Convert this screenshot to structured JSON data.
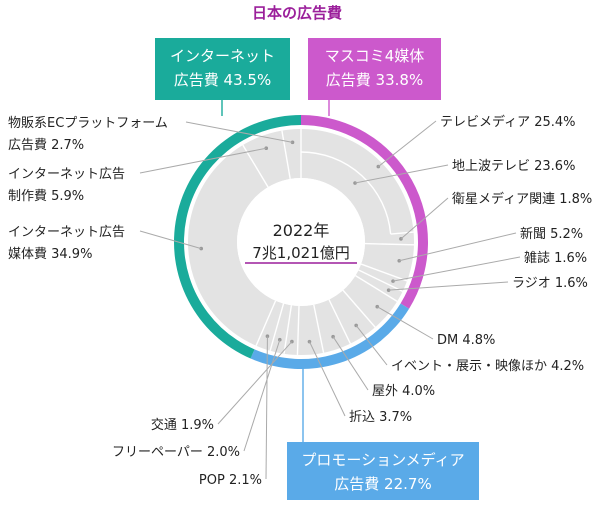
{
  "chart_data": {
    "type": "pie",
    "title": "日本の広告費",
    "center": {
      "year": "2022年",
      "total": "7兆1,021億円"
    },
    "colors": {
      "internet": "#1aab9b",
      "mass": "#cc59cc",
      "promo": "#5aaae8",
      "inner_fill": "#e3e3e3",
      "title": "#9b1f9b"
    },
    "groups": [
      {
        "key": "internet",
        "name": "インターネット",
        "sub": "広告費",
        "value": 43.5,
        "label": "インターネット\n広告費 43.5%"
      },
      {
        "key": "mass",
        "name": "マスコミ4媒体",
        "sub": "広告費",
        "value": 33.8,
        "label": "マスコミ4媒体\n広告費 33.8%"
      },
      {
        "key": "promo",
        "name": "プロモーションメディア",
        "sub": "広告費",
        "value": 22.7,
        "label": "プロモーションメディア\n広告費 22.7%"
      }
    ],
    "slices": [
      {
        "group": "mass",
        "name": "テレビメディア",
        "value": 25.4,
        "label": "テレビメディア 25.4%",
        "parent": true
      },
      {
        "group": "mass",
        "name": "地上波テレビ",
        "value": 23.6,
        "label": "地上波テレビ 23.6%",
        "child": true
      },
      {
        "group": "mass",
        "name": "衛星メディア関連",
        "value": 1.8,
        "label": "衛星メディア関連 1.8%",
        "child": true
      },
      {
        "group": "mass",
        "name": "新聞",
        "value": 5.2,
        "label": "新聞 5.2%"
      },
      {
        "group": "mass",
        "name": "雑誌",
        "value": 1.6,
        "label": "雑誌 1.6%"
      },
      {
        "group": "mass",
        "name": "ラジオ",
        "value": 1.6,
        "label": "ラジオ 1.6%"
      },
      {
        "group": "promo",
        "name": "DM",
        "value": 4.8,
        "label": "DM 4.8%"
      },
      {
        "group": "promo",
        "name": "イベント・展示・映像ほか",
        "value": 4.2,
        "label": "イベント・展示・映像ほか 4.2%"
      },
      {
        "group": "promo",
        "name": "屋外",
        "value": 4.0,
        "label": "屋外 4.0%"
      },
      {
        "group": "promo",
        "name": "折込",
        "value": 3.7,
        "label": "折込 3.7%"
      },
      {
        "group": "promo",
        "name": "交通",
        "value": 1.9,
        "label": "交通 1.9%"
      },
      {
        "group": "promo",
        "name": "フリーペーパー",
        "value": 2.0,
        "label": "フリーペーパー 2.0%"
      },
      {
        "group": "promo",
        "name": "POP",
        "value": 2.1,
        "label": "POP 2.1%"
      },
      {
        "group": "internet",
        "name": "インターネット広告媒体費",
        "value": 34.9,
        "label": "インターネット広告\n媒体費 34.9%"
      },
      {
        "group": "internet",
        "name": "インターネット広告制作費",
        "value": 5.9,
        "label": "インターネット広告\n制作費 5.9%"
      },
      {
        "group": "internet",
        "name": "物販系ECプラットフォーム広告費",
        "value": 2.7,
        "label": "物販系ECプラットフォーム\n広告費 2.7%"
      }
    ]
  }
}
